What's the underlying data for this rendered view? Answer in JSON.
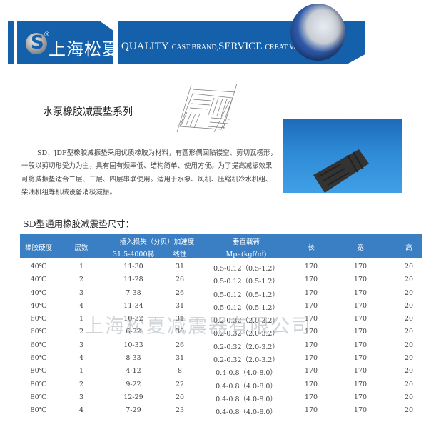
{
  "header": {
    "brand": "上海松夏",
    "registered": "®",
    "slogan_parts": [
      "QUALITY",
      "CAST BRAND,",
      "SERVICE",
      "CREAT VALUE"
    ],
    "brand_color": "#1560aa"
  },
  "product": {
    "title": "水泵橡胶减震垫系列",
    "description": "SD、JDF型橡胶减振垫采用优质橡胶为材料，有圆形偶回陷镂空、剪切瓦楞形，一般以剪切形受力为主，具有固有频率低、结构简单、使用方便。为了提高减振效果可将减振垫适合二层、三层、四层串联使用。适用于水泵、风机、压缩机冷水机组、柴油机组等机械设备消极减振。"
  },
  "table": {
    "title": "SD型通用橡胶减震垫尺寸：",
    "headers": {
      "hardness": "橡胶硬度",
      "layers": "层数",
      "loss": "插入损失（分贝）加速度",
      "loss_sub": "31.5-4000赫",
      "linear": "线性",
      "load": "垂直载荷",
      "load_sub": "Mpa(kgf/㎡)",
      "length": "长",
      "width": "宽",
      "height": "高"
    },
    "header_color": "#3a7fc4",
    "rows": [
      [
        "40℃",
        "1",
        "11-30",
        "31",
        "0.5-0.12（0.5-1.2）",
        "170",
        "170",
        "20"
      ],
      [
        "40℃",
        "2",
        "11-28",
        "26",
        "0.5-0.12（0.5-1.2）",
        "170",
        "170",
        "20"
      ],
      [
        "40℃",
        "3",
        "7-38",
        "26",
        "0.5-0.12（0.5-1.2）",
        "170",
        "170",
        "20"
      ],
      [
        "40℃",
        "4",
        "11-34",
        "31",
        "0.5-0.12（0.5-1.2）",
        "170",
        "170",
        "20"
      ],
      [
        "60℃",
        "1",
        "10-32",
        "31",
        "0.2-0.32（2.0-3.2）",
        "170",
        "170",
        "20"
      ],
      [
        "60℃",
        "2",
        "6-32",
        "30",
        "0.2-0.32（2.0-3.2）",
        "170",
        "170",
        "20"
      ],
      [
        "60℃",
        "3",
        "10-33",
        "26",
        "0.2-0.32（2.0-3.2）",
        "170",
        "170",
        "20"
      ],
      [
        "60℃",
        "4",
        "8-33",
        "31",
        "0.2-0.32（2.0-3.2）",
        "170",
        "170",
        "20"
      ],
      [
        "80℃",
        "1",
        "4-12",
        "8",
        "0.4-0.8（4.0-8.0）",
        "170",
        "170",
        "20"
      ],
      [
        "80℃",
        "2",
        "9-22",
        "22",
        "0.4-0.8（4.0-8.0）",
        "170",
        "170",
        "20"
      ],
      [
        "80℃",
        "3",
        "12-29",
        "20",
        "0.4-0.8（4.0-8.0）",
        "170",
        "170",
        "20"
      ],
      [
        "80℃",
        "4",
        "7-29",
        "23",
        "0.4-0.8（4.0-8.0）",
        "170",
        "170",
        "20"
      ]
    ]
  },
  "watermark": "上海松夏减震器有限公司"
}
